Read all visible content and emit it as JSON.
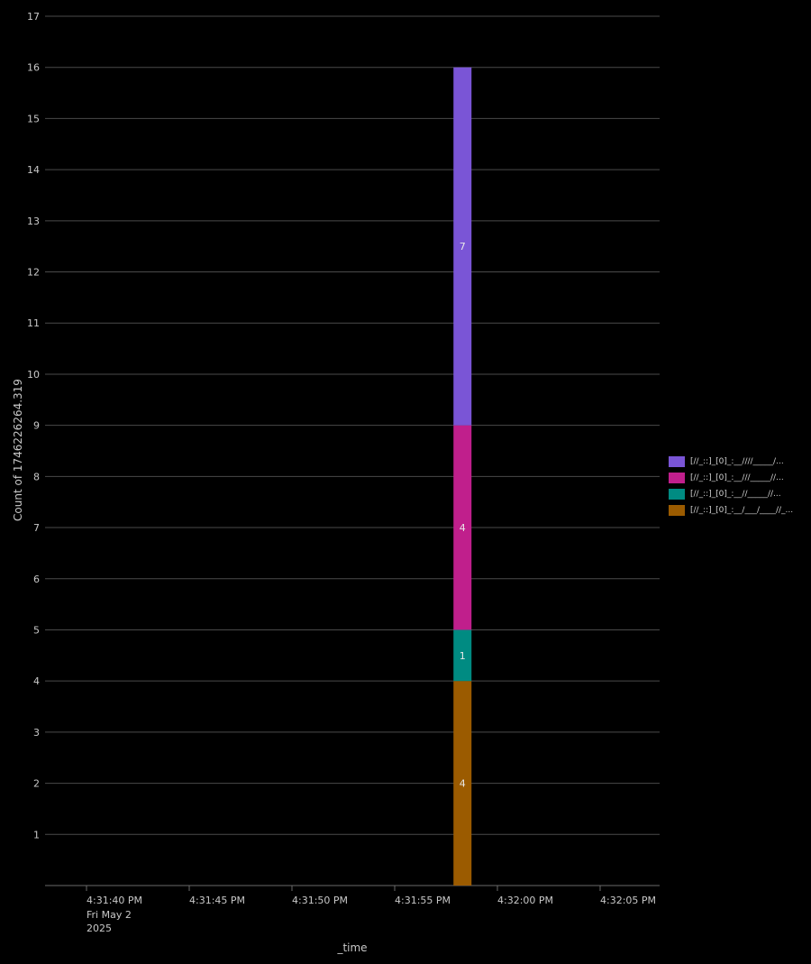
{
  "chart_data": {
    "type": "bar",
    "stacked": true,
    "xlabel": "_time",
    "ylabel": "Count of 1746226264.319",
    "ylim": [
      0,
      17
    ],
    "yticks": [
      1,
      2,
      3,
      4,
      5,
      6,
      7,
      8,
      9,
      10,
      11,
      12,
      13,
      14,
      15,
      16,
      17
    ],
    "x_ticks": [
      {
        "label": "4:31:40 PM",
        "sub": [
          "Fri May 2",
          "2025"
        ]
      },
      {
        "label": "4:31:45 PM",
        "sub": []
      },
      {
        "label": "4:31:50 PM",
        "sub": []
      },
      {
        "label": "4:31:55 PM",
        "sub": []
      },
      {
        "label": "4:32:00 PM",
        "sub": []
      },
      {
        "label": "4:32:05 PM",
        "sub": []
      }
    ],
    "x_tick_seconds": [
      40,
      45,
      50,
      55,
      60,
      65
    ],
    "bar_x_seconds": 58.3,
    "grid": true,
    "legend_position": "right",
    "series": [
      {
        "name": "[//_::]_[0]_:__/___/____//_...",
        "color": "#9b5b00",
        "values": [
          4
        ]
      },
      {
        "name": "[//_::]_[0]_:__//_____//...",
        "color": "#008b82",
        "values": [
          1
        ]
      },
      {
        "name": "[//_::]_[0]_:__///_____//...",
        "color": "#c01f8c",
        "values": [
          4
        ]
      },
      {
        "name": "[//_::]_[0]_:__////_____/...",
        "color": "#7a55d6",
        "values": [
          7
        ]
      }
    ],
    "legend_order": [
      3,
      2,
      1,
      0
    ]
  }
}
